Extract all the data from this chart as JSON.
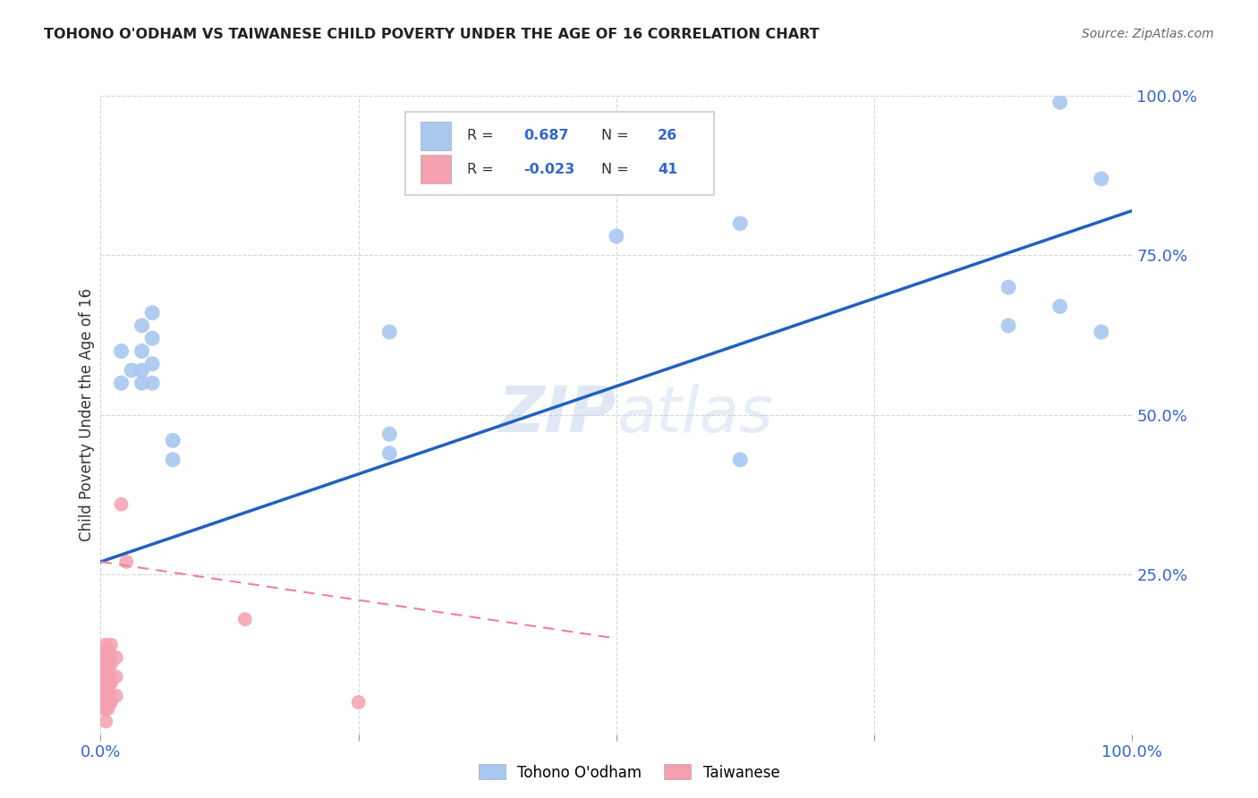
{
  "title": "TOHONO O'ODHAM VS TAIWANESE CHILD POVERTY UNDER THE AGE OF 16 CORRELATION CHART",
  "source": "Source: ZipAtlas.com",
  "ylabel": "Child Poverty Under the Age of 16",
  "xlim": [
    0.0,
    1.0
  ],
  "ylim": [
    0.0,
    1.0
  ],
  "xticks": [
    0.0,
    0.25,
    0.5,
    0.75,
    1.0
  ],
  "yticks": [
    0.0,
    0.25,
    0.5,
    0.75,
    1.0
  ],
  "xticklabels": [
    "0.0%",
    "",
    "",
    "",
    "100.0%"
  ],
  "yticklabels_right": [
    "",
    "25.0%",
    "50.0%",
    "75.0%",
    "100.0%"
  ],
  "tohono_color": "#a8c8f0",
  "taiwanese_color": "#f4a0b0",
  "tohono_line_color": "#2060c0",
  "taiwanese_line_color": "#f08090",
  "watermark_zip": "ZIP",
  "watermark_atlas": "atlas",
  "tohono_scatter_x": [
    0.02,
    0.02,
    0.03,
    0.04,
    0.04,
    0.04,
    0.04,
    0.05,
    0.05,
    0.05,
    0.05,
    0.07,
    0.07,
    0.28,
    0.28,
    0.28,
    0.5,
    0.62,
    0.62,
    0.88,
    0.88,
    0.93,
    0.93,
    0.97,
    0.97
  ],
  "tohono_scatter_y": [
    0.6,
    0.55,
    0.57,
    0.55,
    0.57,
    0.6,
    0.64,
    0.55,
    0.58,
    0.62,
    0.66,
    0.43,
    0.46,
    0.44,
    0.47,
    0.63,
    0.78,
    0.43,
    0.8,
    0.64,
    0.7,
    0.99,
    0.67,
    0.87,
    0.63
  ],
  "taiwanese_scatter_x": [
    0.003,
    0.003,
    0.003,
    0.004,
    0.004,
    0.004,
    0.005,
    0.005,
    0.005,
    0.005,
    0.005,
    0.005,
    0.005,
    0.006,
    0.006,
    0.006,
    0.006,
    0.006,
    0.007,
    0.007,
    0.007,
    0.007,
    0.007,
    0.008,
    0.008,
    0.008,
    0.008,
    0.009,
    0.009,
    0.009,
    0.01,
    0.01,
    0.01,
    0.01,
    0.015,
    0.015,
    0.015,
    0.02,
    0.025,
    0.14,
    0.25
  ],
  "taiwanese_scatter_y": [
    0.1,
    0.07,
    0.04,
    0.12,
    0.09,
    0.06,
    0.14,
    0.12,
    0.1,
    0.08,
    0.06,
    0.04,
    0.02,
    0.13,
    0.11,
    0.09,
    0.07,
    0.05,
    0.12,
    0.1,
    0.08,
    0.06,
    0.04,
    0.13,
    0.11,
    0.08,
    0.05,
    0.12,
    0.09,
    0.06,
    0.14,
    0.11,
    0.08,
    0.05,
    0.12,
    0.09,
    0.06,
    0.36,
    0.27,
    0.18,
    0.05
  ],
  "tohono_line_x": [
    0.0,
    1.0
  ],
  "tohono_line_y": [
    0.27,
    0.82
  ],
  "taiwanese_line_x": [
    0.0,
    0.5
  ],
  "taiwanese_line_y": [
    0.27,
    0.15
  ]
}
